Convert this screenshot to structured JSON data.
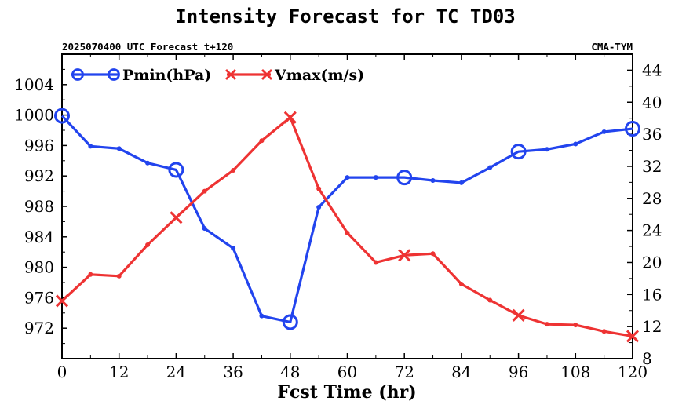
{
  "chart_data": {
    "type": "line",
    "title": "Intensity Forecast for TC TD03",
    "subtitle_left": "2025070400 UTC Forecast t+120",
    "subtitle_right": "CMA-TYM",
    "xlabel": "Fcst Time (hr)",
    "xlim": [
      0,
      120
    ],
    "xticks": [
      0,
      12,
      24,
      36,
      48,
      60,
      72,
      84,
      96,
      108,
      120
    ],
    "ylim_left": [
      968,
      1008
    ],
    "yticks_left": [
      972,
      976,
      980,
      984,
      988,
      992,
      996,
      1000,
      1004
    ],
    "ylim_right": [
      8,
      46
    ],
    "yticks_right": [
      8,
      12,
      16,
      20,
      24,
      28,
      32,
      36,
      40,
      44
    ],
    "legend_position": "top-left",
    "colors": {
      "pmin": "#2244ee",
      "vmax": "#ee3333"
    },
    "series": [
      {
        "name": "Pmin(hPa)",
        "axis": "left",
        "marker": "circle",
        "x": [
          0,
          6,
          12,
          18,
          24,
          30,
          36,
          42,
          48,
          54,
          60,
          66,
          72,
          78,
          84,
          90,
          96,
          102,
          108,
          114,
          120
        ],
        "values": [
          999.9,
          995.9,
          995.6,
          993.7,
          992.8,
          985.1,
          982.5,
          973.6,
          972.8,
          987.9,
          991.8,
          991.8,
          991.8,
          991.4,
          991.1,
          993.1,
          995.2,
          995.5,
          996.2,
          997.8,
          998.2
        ],
        "marker_x": [
          0,
          24,
          48,
          72,
          96,
          120
        ]
      },
      {
        "name": "Vmax(m/s)",
        "axis": "right",
        "marker": "x",
        "x": [
          0,
          6,
          12,
          18,
          24,
          30,
          36,
          42,
          48,
          54,
          60,
          66,
          72,
          78,
          84,
          90,
          96,
          102,
          108,
          114,
          120
        ],
        "values": [
          15.2,
          18.5,
          18.3,
          22.2,
          25.6,
          28.9,
          31.5,
          35.2,
          38.1,
          29.2,
          23.7,
          20.0,
          20.9,
          21.1,
          17.3,
          15.3,
          13.4,
          12.3,
          12.2,
          11.4,
          10.8
        ],
        "marker_x": [
          0,
          24,
          48,
          72,
          96,
          120
        ]
      }
    ]
  }
}
